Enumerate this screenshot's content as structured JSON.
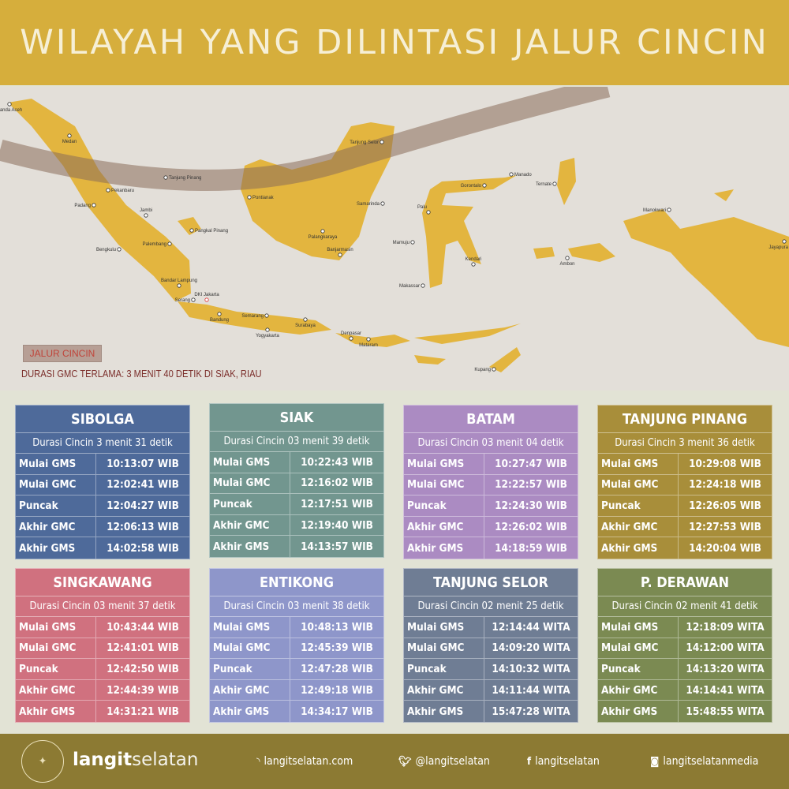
{
  "title": "WILAYAH YANG DILINTASI JALUR CINCIN",
  "map": {
    "land_color": "#e3b53f",
    "band_color": "#8b6b5a",
    "legend_label": "JALUR CINCIN",
    "longest_note": "DURASI GMC TERLAMA: 3 MENIT 40 DETIK DI SIAK, RIAU",
    "cities": [
      "Banda Aceh",
      "Medan",
      "Tanjung Pinang",
      "Pekanbaru",
      "Padang",
      "Jambi",
      "Pangkal Pinang",
      "Palembang",
      "Bengkulu",
      "Bandar Lampung",
      "Serang",
      "DKI Jakarta",
      "Bandung",
      "Semarang",
      "Yogyakarta",
      "Surabaya",
      "Denpasar",
      "Mataram",
      "Pontianak",
      "Tanjung Selor",
      "Samarinda",
      "Palangkaraya",
      "Banjarmasin",
      "Gorontalo",
      "Manado",
      "Palu",
      "Mamuju",
      "Kendari",
      "Makassar",
      "Ternate",
      "Ambon",
      "Manokwari",
      "Jayapura",
      "Kupang"
    ]
  },
  "cards": [
    {
      "name": "SIBOLGA",
      "color": "#4e6a9a",
      "duration": "Durasi Cincin 3 menit 31 detik",
      "rows": [
        [
          "Mulai GMS",
          "10:13:07 WIB"
        ],
        [
          "Mulai GMC",
          "12:02:41 WIB"
        ],
        [
          "Puncak",
          "12:04:27 WIB"
        ],
        [
          "Akhir GMC",
          "12:06:13  WIB"
        ],
        [
          "Akhir GMS",
          "14:02:58 WIB"
        ]
      ]
    },
    {
      "name": "SIAK",
      "color": "#72968f",
      "duration": "Durasi Cincin 03 menit 39 detik",
      "rows": [
        [
          "Mulai GMS",
          "10:22:43 WIB"
        ],
        [
          "Mulai GMC",
          "12:16:02 WIB"
        ],
        [
          "Puncak",
          "12:17:51 WIB"
        ],
        [
          "Akhir GMC",
          "12:19:40 WIB"
        ],
        [
          "Akhir GMS",
          "14:13:57 WIB"
        ]
      ]
    },
    {
      "name": "BATAM",
      "color": "#ab8bc2",
      "duration": "Durasi Cincin 03 menit 04 detik",
      "rows": [
        [
          "Mulai GMS",
          "10:27:47 WIB"
        ],
        [
          "Mulai GMC",
          "12:22:57 WIB"
        ],
        [
          "Puncak",
          "12:24:30 WIB"
        ],
        [
          "Akhir GMC",
          "12:26:02 WIB"
        ],
        [
          "Akhir GMS",
          "14:18:59 WIB"
        ]
      ]
    },
    {
      "name": "TANJUNG PINANG",
      "color": "#a88e3a",
      "duration": "Durasi Cincin 3 menit 36 detik",
      "rows": [
        [
          "Mulai GMS",
          "10:29:08 WIB"
        ],
        [
          "Mulai GMC",
          "12:24:18 WIB"
        ],
        [
          "Puncak",
          "12:26:05 WIB"
        ],
        [
          "Akhir GMC",
          "12:27:53 WIB"
        ],
        [
          "Akhir GMS",
          "14:20:04 WIB"
        ]
      ]
    },
    {
      "name": "SINGKAWANG",
      "color": "#d0717f",
      "duration": "Durasi Cincin 03 menit 37 detik",
      "rows": [
        [
          "Mulai GMS",
          "10:43:44 WIB"
        ],
        [
          "Mulai GMC",
          "12:41:01 WIB"
        ],
        [
          "Puncak",
          "12:42:50 WIB"
        ],
        [
          "Akhir GMC",
          "12:44:39 WIB"
        ],
        [
          "Akhir GMS",
          "14:31:21 WIB"
        ]
      ]
    },
    {
      "name": "ENTIKONG",
      "color": "#8e96ca",
      "duration": "Durasi Cincin 03 menit 38 detik",
      "rows": [
        [
          "Mulai GMS",
          "10:48:13 WIB"
        ],
        [
          "Mulai GMC",
          "12:45:39 WIB"
        ],
        [
          "Puncak",
          "12:47:28 WIB"
        ],
        [
          "Akhir GMC",
          "12:49:18 WIB"
        ],
        [
          "Akhir GMS",
          "14:34:17 WIB"
        ]
      ]
    },
    {
      "name": "TANJUNG SELOR",
      "color": "#6f7d94",
      "duration": "Durasi Cincin 02 menit 25 detik",
      "rows": [
        [
          "Mulai GMS",
          "12:14:44 WITA"
        ],
        [
          "Mulai GMC",
          "14:09:20 WITA"
        ],
        [
          "Puncak",
          "14:10:32 WITA"
        ],
        [
          "Akhir GMC",
          "14:11:44 WITA"
        ],
        [
          "Akhir GMS",
          "15:47:28 WITA"
        ]
      ]
    },
    {
      "name": "P. DERAWAN",
      "color": "#7b8a52",
      "duration": "Durasi Cincin 02 menit 41 detik",
      "rows": [
        [
          "Mulai GMS",
          "12:18:09 WITA"
        ],
        [
          "Mulai GMC",
          "14:12:00 WITA"
        ],
        [
          "Puncak",
          "14:13:20 WITA"
        ],
        [
          "Akhir GMC",
          "14:14:41 WITA"
        ],
        [
          "Akhir GMS",
          "15:48:55 WITA"
        ]
      ]
    }
  ],
  "footer": {
    "brand_bold": "langit",
    "brand_light": "selatan",
    "logo_text": "LANGITSELATAN",
    "links": [
      {
        "icon": "rss-icon",
        "label": "langitselatan.com"
      },
      {
        "icon": "twitter-icon",
        "label": "@langitselatan"
      },
      {
        "icon": "facebook-icon",
        "label": "langitselatan"
      },
      {
        "icon": "instagram-icon",
        "label": "langitselatanmedia"
      }
    ]
  }
}
